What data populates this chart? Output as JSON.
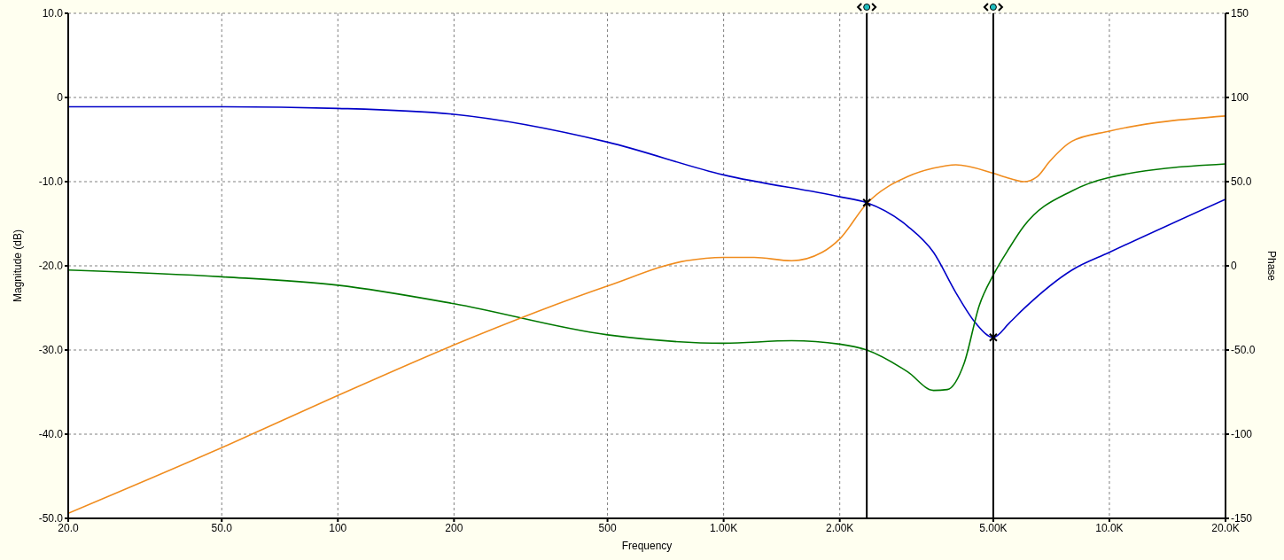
{
  "chart_data": {
    "type": "line",
    "xlabel": "Frequency",
    "ylabel": "Magnitude (dB)",
    "y2label": "Phase",
    "log": "x",
    "grid": true,
    "xlim": [
      20,
      20000
    ],
    "xticks": [
      {
        "value": 20,
        "label": "20.0"
      },
      {
        "value": 50,
        "label": "50.0"
      },
      100,
      200,
      500,
      {
        "value": 1000,
        "label": "1.00K"
      },
      {
        "value": 2000,
        "label": "2.00K"
      },
      {
        "value": 5000,
        "label": "5.00K"
      },
      {
        "value": 10000,
        "label": "10.0K"
      },
      {
        "value": 20000,
        "label": "20.0K"
      }
    ],
    "ylim": [
      -50,
      10
    ],
    "yticks": [
      {
        "value": -50,
        "label": "-50.0"
      },
      {
        "value": -40,
        "label": "-40.0"
      },
      {
        "value": -30,
        "label": "-30.0"
      },
      {
        "value": -20,
        "label": "-20.0"
      },
      {
        "value": -10,
        "label": "-10.0"
      },
      0,
      {
        "value": 10,
        "label": "10.0"
      }
    ],
    "y2lim": [
      -150,
      150
    ],
    "y2ticks": [
      -150,
      -100,
      {
        "value": -50,
        "label": "-50.0"
      },
      0,
      {
        "value": 50,
        "label": "50.0"
      },
      100,
      150
    ],
    "series": [
      {
        "color": "#0000c8",
        "x": [
          20,
          50,
          100,
          200,
          500,
          1000,
          2000,
          2350,
          3000,
          3500,
          4000,
          4500,
          5000,
          5500,
          6000,
          8000,
          10000,
          20000
        ],
        "values": [
          -1.1,
          -1.1,
          -1.3,
          -2.0,
          -5.3,
          -9.2,
          -11.8,
          -12.5,
          -15.3,
          -18.4,
          -23.2,
          -26.8,
          -28.5,
          -26.8,
          -25.1,
          -20.5,
          -18.4,
          -12.1
        ]
      },
      {
        "color": "#007800",
        "x": [
          20,
          50,
          100,
          200,
          500,
          1000,
          1500,
          2000,
          2350,
          3000,
          3500,
          3800,
          4200,
          4600,
          5000,
          5500,
          6000,
          8000,
          10000,
          20000
        ],
        "values": [
          -20.5,
          -21.3,
          -22.3,
          -24.5,
          -28.2,
          -29.2,
          -28.9,
          -29.3,
          -30.0,
          -32.6,
          -34.8,
          -34.7,
          -31.6,
          -24.7,
          -21.1,
          -17.9,
          -15.3,
          -11.1,
          -9.5,
          -7.9
        ]
      },
      {
        "color": "#f08c1e",
        "axis": "y2",
        "x": [
          20,
          50,
          100,
          200,
          500,
          800,
          1000,
          1200,
          1500,
          1800,
          2000,
          2350,
          3000,
          3500,
          4000,
          5000,
          5500,
          6000,
          6500,
          7000,
          8000,
          10000,
          20000
        ],
        "values": [
          -147,
          -108,
          -77,
          -47,
          -12,
          3,
          5,
          5,
          3,
          8,
          16,
          37,
          53,
          58,
          60,
          55,
          52,
          50,
          53,
          62,
          74,
          80,
          89
        ]
      },
      {
        "type": "scatter",
        "marker": "cross",
        "color": "#000000",
        "x": [
          2350,
          5000
        ],
        "values": [
          -12.5,
          -28.5
        ]
      }
    ],
    "ref_lines": [
      {
        "axis": "x",
        "value": 2350,
        "color": "#000000"
      },
      {
        "axis": "x",
        "value": 5000,
        "color": "#000000"
      }
    ]
  }
}
